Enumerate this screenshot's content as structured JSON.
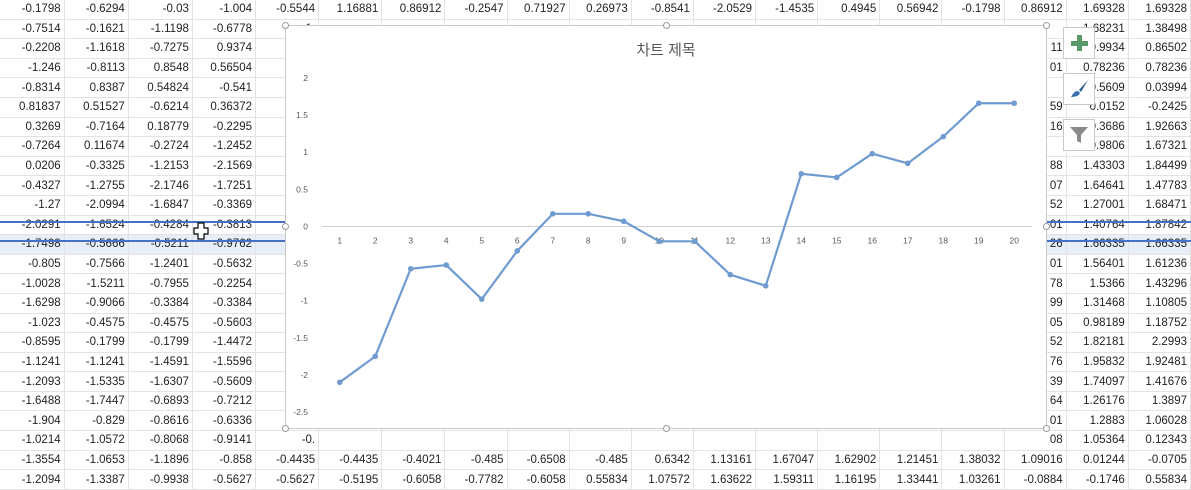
{
  "sheet": {
    "rows": [
      [
        "-0.1798",
        "-0.6294",
        "-0.03",
        "-1.004",
        "-0.5544",
        "1.16881",
        "0.86912",
        "-0.2547",
        "0.71927",
        "0.26973",
        "-0.8541",
        "-2.0529",
        "-1.4535",
        "0.4945",
        "0.56942",
        "-0.1798",
        "0.86912",
        "1.69328",
        "1.69328"
      ],
      [
        "-0.7514",
        "-0.1621",
        "-1.1198",
        "-0.6778",
        "1.",
        "",
        "",
        "",
        "",
        "",
        "",
        "",
        "",
        "",
        "",
        "",
        "",
        "1.68231",
        "1.38498"
      ],
      [
        "-0.2208",
        "-1.1618",
        "-0.7275",
        "0.9374",
        "0.",
        "",
        "",
        "",
        "",
        "",
        "",
        "",
        "",
        "",
        "",
        "",
        "11",
        "0.9934",
        "0.86502"
      ],
      [
        "-1.246",
        "-0.8113",
        "0.8548",
        "0.56504",
        "-0.",
        "",
        "",
        "",
        "",
        "",
        "",
        "",
        "",
        "",
        "",
        "",
        "01",
        "0.78236",
        "0.78236"
      ],
      [
        "-0.8314",
        "0.8387",
        "0.54824",
        "-0.541",
        "0.4",
        "",
        "",
        "",
        "",
        "",
        "",
        "",
        "",
        "",
        "",
        "",
        "",
        "0.5609",
        "0.03994"
      ],
      [
        "0.81837",
        "0.51527",
        "-0.6214",
        "0.36372",
        "-0.",
        "",
        "",
        "",
        "",
        "",
        "",
        "",
        "",
        "",
        "",
        "",
        "59",
        "0.0152",
        "-0.2425"
      ],
      [
        "0.3269",
        "-0.7164",
        "0.18779",
        "-0.2295",
        "-1.",
        "",
        "",
        "",
        "",
        "",
        "",
        "",
        "",
        "",
        "",
        "",
        "16",
        "0.3686",
        "1.92663"
      ],
      [
        "-0.7264",
        "0.11674",
        "-0.2724",
        "-1.2452",
        "-2.",
        "",
        "",
        "",
        "",
        "",
        "",
        "",
        "",
        "",
        "",
        "",
        "",
        "0.9806",
        "1.67321"
      ],
      [
        "0.0206",
        "-0.3325",
        "-1.2153",
        "-2.1569",
        "-1.",
        "",
        "",
        "",
        "",
        "",
        "",
        "",
        "",
        "",
        "",
        "",
        "88",
        "1.43303",
        "1.84499"
      ],
      [
        "-0.4327",
        "-1.2755",
        "-2.1746",
        "-1.7251",
        "-0.",
        "",
        "",
        "",
        "",
        "",
        "",
        "",
        "",
        "",
        "",
        "",
        "07",
        "1.64641",
        "1.47783"
      ],
      [
        "-1.27",
        "-2.0994",
        "-1.6847",
        "-0.3369",
        "-0.",
        "",
        "",
        "",
        "",
        "",
        "",
        "",
        "",
        "",
        "",
        "",
        "52",
        "1.27001",
        "1.68471"
      ],
      [
        "-2.0291",
        "-1.6524",
        "-0.4284",
        "-0.3813",
        "-0.",
        "",
        "",
        "",
        "",
        "",
        "",
        "",
        "",
        "",
        "",
        "",
        "01",
        "1.40764",
        "1.87842"
      ],
      [
        "-1.7498",
        "-0.5666",
        "-0.5211",
        "-0.9762",
        "-0.",
        "",
        "",
        "",
        "",
        "",
        "",
        "",
        "",
        "",
        "",
        "",
        "26",
        "1.66335",
        "1.66335"
      ],
      [
        "-0.805",
        "-0.7566",
        "-1.2401",
        "-0.5632",
        "-0.",
        "",
        "",
        "",
        "",
        "",
        "",
        "",
        "",
        "",
        "",
        "",
        "01",
        "1.56401",
        "1.61236"
      ],
      [
        "-1.0028",
        "-1.5211",
        "-0.7955",
        "-0.2254",
        "-0.",
        "",
        "",
        "",
        "",
        "",
        "",
        "",
        "",
        "",
        "",
        "",
        "78",
        "1.5366",
        "1.43296"
      ],
      [
        "-1.6298",
        "-0.9066",
        "-0.3384",
        "-0.3384",
        "-1.",
        "",
        "",
        "",
        "",
        "",
        "",
        "",
        "",
        "",
        "",
        "",
        "99",
        "1.31468",
        "1.10805"
      ],
      [
        "-1.023",
        "-0.4575",
        "-0.4575",
        "-0.5603",
        "-0.",
        "",
        "",
        "",
        "",
        "",
        "",
        "",
        "",
        "",
        "",
        "",
        "05",
        "0.98189",
        "1.18752"
      ],
      [
        "-0.8595",
        "-0.1799",
        "-0.1799",
        "-1.4472",
        "-1.",
        "",
        "",
        "",
        "",
        "",
        "",
        "",
        "",
        "",
        "",
        "",
        "52",
        "1.82181",
        "2.2993"
      ],
      [
        "-1.1241",
        "-1.1241",
        "-1.4591",
        "-1.5596",
        "-(",
        "",
        "",
        "",
        "",
        "",
        "",
        "",
        "",
        "",
        "",
        "",
        "76",
        "1.95832",
        "1.92481"
      ],
      [
        "-1.2093",
        "-1.5335",
        "-1.6307",
        "-0.5609",
        "-0.",
        "",
        "",
        "",
        "",
        "",
        "",
        "",
        "",
        "",
        "",
        "",
        "39",
        "1.74097",
        "1.41676"
      ],
      [
        "-1.6488",
        "-1.7447",
        "-0.6893",
        "-0.7212",
        "-0.",
        "",
        "",
        "",
        "",
        "",
        "",
        "",
        "",
        "",
        "",
        "",
        "64",
        "1.26176",
        "1.3897"
      ],
      [
        "-1.904",
        "-0.829",
        "-0.8616",
        "-0.6336",
        "-0.",
        "",
        "",
        "",
        "",
        "",
        "",
        "",
        "",
        "",
        "",
        "",
        "01",
        "1.2883",
        "1.06028"
      ],
      [
        "-1.0214",
        "-1.0572",
        "-0.8068",
        "-0.9141",
        "-0.",
        "",
        "",
        "",
        "",
        "",
        "",
        "",
        "",
        "",
        "",
        "",
        "08",
        "1.05364",
        "0.12343"
      ],
      [
        "-1.3554",
        "-1.0653",
        "-1.1896",
        "-0.858",
        "-0.4435",
        "-0.4435",
        "-0.4021",
        "-0.485",
        "-0.6508",
        "-0.485",
        "0.6342",
        "1.13161",
        "1.67047",
        "1.62902",
        "1.21451",
        "1.38032",
        "1.09016",
        "0.01244",
        "-0.0705"
      ],
      [
        "-1.2094",
        "-1.3387",
        "-0.9938",
        "-0.5627",
        "-0.5627",
        "-0.5195",
        "-0.6058",
        "-0.7782",
        "-0.6058",
        "0.55834",
        "1.07572",
        "1.63622",
        "1.59311",
        "1.16195",
        "1.33441",
        "1.03261",
        "-0.0884",
        "-0.1746",
        "0.55834"
      ]
    ]
  },
  "chart_data": {
    "type": "line",
    "title": "차트 제목",
    "x": [
      1,
      2,
      3,
      4,
      5,
      6,
      7,
      8,
      9,
      10,
      11,
      12,
      13,
      14,
      15,
      16,
      17,
      18,
      19,
      20
    ],
    "series": [
      {
        "values": [
          -2.1,
          -1.75,
          -0.57,
          -0.52,
          -0.98,
          -0.33,
          0.17,
          0.17,
          0.07,
          -0.2,
          -0.2,
          -0.65,
          -0.8,
          0.71,
          0.66,
          0.98,
          0.85,
          1.21,
          1.66,
          1.66
        ]
      }
    ],
    "ylim": [
      -2.5,
      2
    ],
    "yticks": [
      "2",
      "1.5",
      "1",
      "0.5",
      "0",
      "-0.5",
      "-1",
      "-1.5",
      "-2",
      "-2.5"
    ],
    "grid": false,
    "line_color": "#6f9bd0"
  },
  "chart_tools": [
    {
      "icon": "plus-icon",
      "label": "Chart Elements"
    },
    {
      "icon": "brush-icon",
      "label": "Chart Styles"
    },
    {
      "icon": "filter-icon",
      "label": "Chart Filters"
    }
  ]
}
